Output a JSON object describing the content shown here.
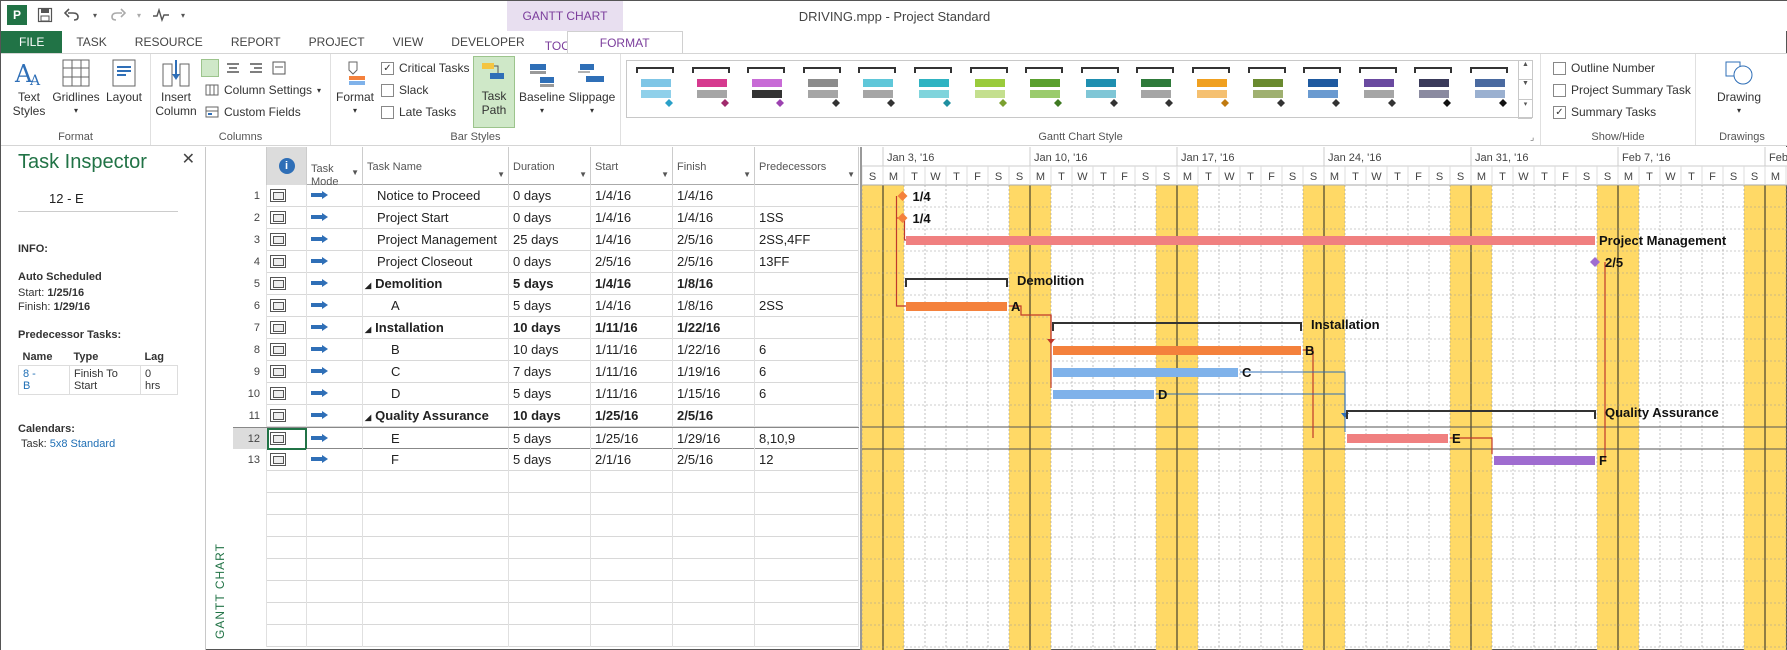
{
  "window": {
    "title": "DRIVING.mpp - Project Standard",
    "context_tab_group": "GANTT CHART TOOLS"
  },
  "qat": {
    "icons": [
      "project-logo-icon",
      "save-icon",
      "undo-icon",
      "redo-icon",
      "activity-icon"
    ]
  },
  "tabs": [
    "FILE",
    "TASK",
    "RESOURCE",
    "REPORT",
    "PROJECT",
    "VIEW",
    "DEVELOPER"
  ],
  "active_tab": "FORMAT",
  "ribbon": {
    "format_group": {
      "label": "Format",
      "text_styles": "Text\nStyles",
      "gridlines": "Gridlines",
      "layout": "Layout"
    },
    "columns_group": {
      "label": "Columns",
      "insert_column": "Insert\nColumn",
      "column_settings": "Column Settings",
      "custom_fields": "Custom Fields"
    },
    "bar_styles_group": {
      "label": "Bar Styles",
      "format": "Format",
      "critical_tasks": "Critical Tasks",
      "critical_checked": true,
      "slack": "Slack",
      "slack_checked": false,
      "late_tasks": "Late Tasks",
      "late_checked": false,
      "task_path": "Task\nPath",
      "baseline": "Baseline",
      "slippage": "Slippage"
    },
    "gantt_style_group": {
      "label": "Gantt Chart Style",
      "styles": [
        {
          "top": "#7fc6e6",
          "bottom": "#8fd0ea",
          "diamond": "#2aa0c8"
        },
        {
          "top": "#d63a8f",
          "bottom": "#a5a5a5",
          "diamond": "#a02a6c"
        },
        {
          "top": "#c86bd6",
          "bottom": "#333333",
          "diamond": "#9c42b0"
        },
        {
          "top": "#8c8c8c",
          "bottom": "#a5a5a5",
          "diamond": "#333333"
        },
        {
          "top": "#5fc7d9",
          "bottom": "#a5a5a5",
          "diamond": "#333333"
        },
        {
          "top": "#2fb3c2",
          "bottom": "#7fd4dc",
          "diamond": "#1f8fa0"
        },
        {
          "top": "#9acb3c",
          "bottom": "#c4df8e",
          "diamond": "#7ba02f"
        },
        {
          "top": "#5aa02f",
          "bottom": "#9acb6c",
          "diamond": "#3f7a22"
        },
        {
          "top": "#1f8fb0",
          "bottom": "#7fc6d6",
          "diamond": "#333333"
        },
        {
          "top": "#2e7a3a",
          "bottom": "#a5a5a5",
          "diamond": "#333333"
        },
        {
          "top": "#f0a020",
          "bottom": "#f5c070",
          "diamond": "#c07a10"
        },
        {
          "top": "#6a8a2f",
          "bottom": "#9fb070",
          "diamond": "#333333"
        },
        {
          "top": "#1f5aa0",
          "bottom": "#6a9ad0",
          "diamond": "#333333"
        },
        {
          "top": "#6a4aa0",
          "bottom": "#a5a5a5",
          "diamond": "#333333"
        },
        {
          "top": "#3a3a5a",
          "bottom": "#8a8aa0",
          "diamond": "#111111"
        },
        {
          "top": "#4a6aa0",
          "bottom": "#9ab0d0",
          "diamond": "#111111"
        }
      ]
    },
    "show_hide_group": {
      "label": "Show/Hide",
      "outline_number": "Outline Number",
      "outline_checked": false,
      "project_summary_task": "Project Summary Task",
      "psummary_checked": false,
      "summary_tasks": "Summary Tasks",
      "summary_checked": true
    },
    "drawings_group": {
      "label": "Drawings",
      "drawing": "Drawing"
    }
  },
  "inspector": {
    "title": "Task Inspector",
    "task": "12 - E",
    "info_label": "INFO:",
    "mode": "Auto Scheduled",
    "start_label": "Start:",
    "start_value": "1/25/16",
    "finish_label": "Finish:",
    "finish_value": "1/29/16",
    "pred_heading": "Predecessor Tasks:",
    "pred_cols": [
      "Name",
      "Type",
      "Lag"
    ],
    "pred_rows": [
      {
        "name": "8 -\nB",
        "type": "Finish To\nStart",
        "lag": "0\nhrs"
      }
    ],
    "calendars_heading": "Calendars:",
    "calendar_label": "Task:",
    "calendar_value": "5x8 Standard"
  },
  "view_label": "GANTT CHART",
  "table": {
    "headers": {
      "task_mode": "Task\nMode",
      "task_name": "Task Name",
      "duration": "Duration",
      "start": "Start",
      "finish": "Finish",
      "predecessors": "Predecessors"
    },
    "rows": [
      {
        "id": "1",
        "name": "Notice to Proceed",
        "duration": "0 days",
        "start": "1/4/16",
        "finish": "1/4/16",
        "pred": "",
        "level": 1,
        "summary": false
      },
      {
        "id": "2",
        "name": "Project Start",
        "duration": "0 days",
        "start": "1/4/16",
        "finish": "1/4/16",
        "pred": "1SS",
        "level": 1,
        "summary": false
      },
      {
        "id": "3",
        "name": "Project Management",
        "duration": "25 days",
        "start": "1/4/16",
        "finish": "2/5/16",
        "pred": "2SS,4FF",
        "level": 1,
        "summary": false
      },
      {
        "id": "4",
        "name": "Project Closeout",
        "duration": "0 days",
        "start": "2/5/16",
        "finish": "2/5/16",
        "pred": "13FF",
        "level": 1,
        "summary": false
      },
      {
        "id": "5",
        "name": "Demolition",
        "duration": "5 days",
        "start": "1/4/16",
        "finish": "1/8/16",
        "pred": "",
        "level": 1,
        "summary": true
      },
      {
        "id": "6",
        "name": "A",
        "duration": "5 days",
        "start": "1/4/16",
        "finish": "1/8/16",
        "pred": "2SS",
        "level": 2,
        "summary": false
      },
      {
        "id": "7",
        "name": "Installation",
        "duration": "10 days",
        "start": "1/11/16",
        "finish": "1/22/16",
        "pred": "",
        "level": 1,
        "summary": true
      },
      {
        "id": "8",
        "name": "B",
        "duration": "10 days",
        "start": "1/11/16",
        "finish": "1/22/16",
        "pred": "6",
        "level": 2,
        "summary": false
      },
      {
        "id": "9",
        "name": "C",
        "duration": "7 days",
        "start": "1/11/16",
        "finish": "1/19/16",
        "pred": "6",
        "level": 2,
        "summary": false
      },
      {
        "id": "10",
        "name": "D",
        "duration": "5 days",
        "start": "1/11/16",
        "finish": "1/15/16",
        "pred": "6",
        "level": 2,
        "summary": false
      },
      {
        "id": "11",
        "name": "Quality Assurance",
        "duration": "10 days",
        "start": "1/25/16",
        "finish": "2/5/16",
        "pred": "",
        "level": 1,
        "summary": true
      },
      {
        "id": "12",
        "name": "E",
        "duration": "5 days",
        "start": "1/25/16",
        "finish": "1/29/16",
        "pred": "8,10,9",
        "level": 2,
        "summary": false,
        "selected": true
      },
      {
        "id": "13",
        "name": "F",
        "duration": "5 days",
        "start": "2/1/16",
        "finish": "2/5/16",
        "pred": "12",
        "level": 2,
        "summary": false
      }
    ]
  },
  "gantt": {
    "week_labels": [
      "Jan 3, '16",
      "Jan 10, '16",
      "Jan 17, '16",
      "Jan 24, '16",
      "Jan 31, '16",
      "Feb 7, '16",
      "Feb"
    ],
    "day_letters": [
      "S",
      "M",
      "T",
      "W",
      "T",
      "F",
      "S"
    ],
    "first_day": "1/2/16",
    "colors": {
      "weekend": "#ffd966",
      "critical": "#f08080",
      "driving": "#f4813c",
      "normal": "#7fb2ea",
      "successor": "#9f6cd0",
      "summary": "#333333",
      "milestone": "#f4813c",
      "link": "#c0392b",
      "link_normal": "#2f6fb7"
    },
    "tasks": [
      {
        "row": 1,
        "kind": "milestone",
        "date": "1/4/16",
        "label": "1/4",
        "color": "milestone"
      },
      {
        "row": 2,
        "kind": "milestone",
        "date": "1/4/16",
        "label": "1/4",
        "color": "milestone"
      },
      {
        "row": 3,
        "kind": "bar",
        "start": "1/4/16",
        "finish": "2/5/16",
        "label": "Project Management",
        "color": "critical"
      },
      {
        "row": 4,
        "kind": "milestone",
        "date": "2/5/16",
        "label": "2/5",
        "color": "successor"
      },
      {
        "row": 5,
        "kind": "summary",
        "start": "1/4/16",
        "finish": "1/8/16",
        "label": "Demolition"
      },
      {
        "row": 6,
        "kind": "bar",
        "start": "1/4/16",
        "finish": "1/8/16",
        "label": "A",
        "color": "driving"
      },
      {
        "row": 7,
        "kind": "summary",
        "start": "1/11/16",
        "finish": "1/22/16",
        "label": "Installation"
      },
      {
        "row": 8,
        "kind": "bar",
        "start": "1/11/16",
        "finish": "1/22/16",
        "label": "B",
        "color": "driving"
      },
      {
        "row": 9,
        "kind": "bar",
        "start": "1/11/16",
        "finish": "1/19/16",
        "label": "C",
        "color": "normal"
      },
      {
        "row": 10,
        "kind": "bar",
        "start": "1/11/16",
        "finish": "1/15/16",
        "label": "D",
        "color": "normal"
      },
      {
        "row": 11,
        "kind": "summary",
        "start": "1/25/16",
        "finish": "2/5/16",
        "label": "Quality Assurance"
      },
      {
        "row": 12,
        "kind": "bar",
        "start": "1/25/16",
        "finish": "1/29/16",
        "label": "E",
        "color": "critical"
      },
      {
        "row": 13,
        "kind": "bar",
        "start": "2/1/16",
        "finish": "2/5/16",
        "label": "F",
        "color": "successor"
      }
    ]
  }
}
